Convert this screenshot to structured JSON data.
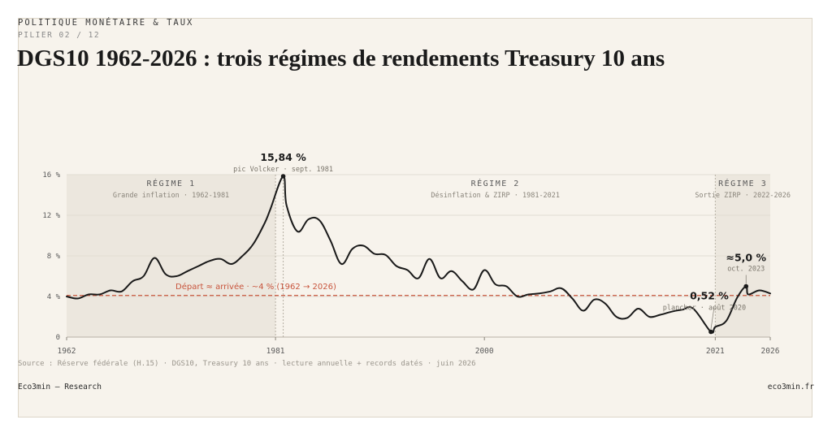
{
  "header": {
    "kicker": "POLITIQUE MONÉTAIRE & TAUX",
    "pillar": "PILIER 02 / 12",
    "title": "DGS10 1962-2026 : trois régimes de rendements Treasury 10 ans"
  },
  "footer": {
    "source": "Source : Réserve fédérale (H.15) · DGS10, Treasury 10 ans · lecture annuelle + records datés · juin 2026",
    "brand_left": "Eco3min — Research",
    "brand_right": "eco3min.fr"
  },
  "colors": {
    "line": "#1a1a1a",
    "reference": "#c8553d",
    "shade": "#ece7de",
    "grid": "#e2ddd3",
    "background": "#f7f3ec"
  },
  "chart_data": {
    "type": "line",
    "ylim": [
      0,
      16
    ],
    "xlim": [
      1962,
      2026
    ],
    "y_ticks": [
      0,
      4,
      8,
      12,
      16
    ],
    "y_tick_labels": [
      "0",
      "4 %",
      "8 %",
      "12 %",
      "16 %"
    ],
    "x_ticks": [
      1962,
      1981,
      2000,
      2021,
      2026
    ],
    "x_tick_labels": [
      "1962",
      "1981",
      "2000",
      "2021",
      "2026"
    ],
    "grid": true,
    "series": [
      {
        "x": [
          1962,
          1963,
          1964,
          1965,
          1966,
          1967,
          1968,
          1969,
          1970,
          1971,
          1972,
          1973,
          1974,
          1975,
          1976,
          1977,
          1978,
          1979,
          1980,
          1980.5,
          1981.7,
          1982,
          1983,
          1984,
          1985,
          1986,
          1987,
          1988,
          1989,
          1990,
          1991,
          1992,
          1993,
          1994,
          1995,
          1996,
          1997,
          1998,
          1999,
          2000,
          2001,
          2002,
          2003,
          2004,
          2005,
          2006,
          2007,
          2008,
          2009,
          2010,
          2011,
          2012,
          2013,
          2014,
          2015,
          2016,
          2017,
          2018,
          2019,
          2020.6,
          2021,
          2022,
          2023,
          2023.8,
          2024,
          2025,
          2026
        ],
        "y": [
          4.0,
          3.8,
          4.2,
          4.2,
          4.6,
          4.5,
          5.5,
          6.0,
          7.8,
          6.2,
          6.0,
          6.5,
          7.0,
          7.5,
          7.7,
          7.2,
          8.0,
          9.2,
          11.2,
          12.5,
          15.84,
          13.0,
          10.4,
          11.6,
          11.5,
          9.5,
          7.2,
          8.7,
          9.0,
          8.2,
          8.1,
          7.0,
          6.6,
          5.8,
          7.7,
          5.8,
          6.5,
          5.5,
          4.7,
          6.6,
          5.2,
          5.0,
          4.0,
          4.2,
          4.3,
          4.5,
          4.8,
          3.8,
          2.6,
          3.7,
          3.3,
          2.0,
          1.9,
          2.8,
          2.0,
          2.2,
          2.5,
          2.7,
          2.8,
          0.52,
          1.0,
          1.6,
          3.9,
          5.0,
          4.2,
          4.6,
          4.3
        ]
      }
    ],
    "reference_line": {
      "y": 4.1,
      "label": "Départ ≈ arrivée · ~4 % (1962 → 2026)"
    },
    "regimes": [
      {
        "name": "RÉGIME 1",
        "subtitle": "Grande inflation · 1962-1981",
        "start": 1962,
        "end": 1981,
        "shaded": true
      },
      {
        "name": "RÉGIME 2",
        "subtitle": "Désinflation & ZIRP · 1981-2021",
        "start": 1981,
        "end": 2021,
        "shaded": false
      },
      {
        "name": "RÉGIME 3",
        "subtitle": "Sortie ZIRP · 2022-2026",
        "start": 2021,
        "end": 2026,
        "shaded": true
      }
    ],
    "annotations": [
      {
        "x": 1981.7,
        "y": 15.84,
        "value": "15,84 %",
        "note": "pic Volcker · sept. 1981"
      },
      {
        "x": 2020.6,
        "y": 0.52,
        "value": "0,52 %",
        "note": "plancher · août 2020"
      },
      {
        "x": 2023.8,
        "y": 5.0,
        "value": "≈5,0 %",
        "note": "oct. 2023"
      }
    ]
  }
}
